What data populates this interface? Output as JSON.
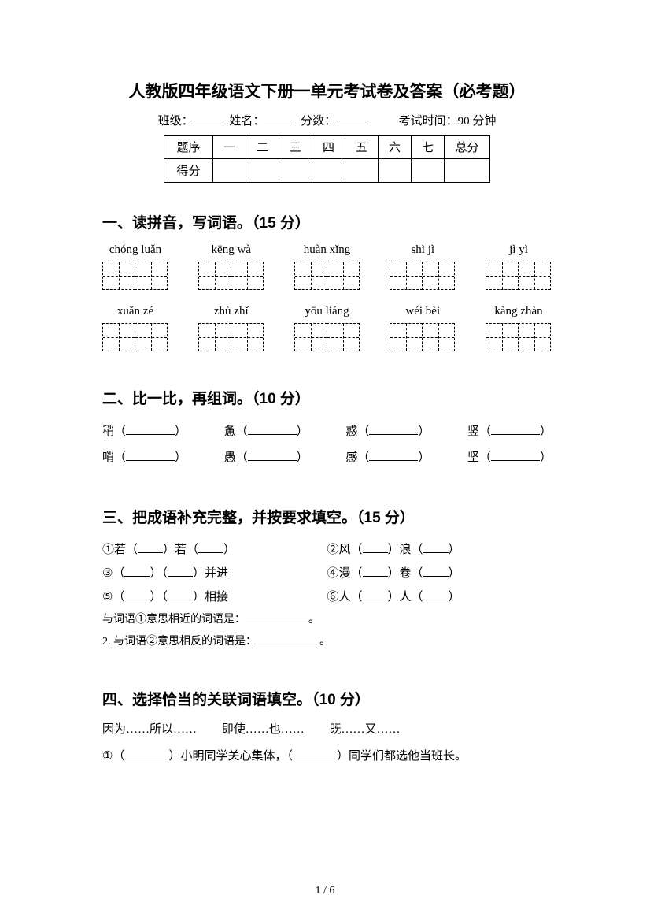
{
  "title": "人教版四年级语文下册一单元考试卷及答案（必考题）",
  "info": {
    "class_label": "班级：",
    "name_label": "姓名：",
    "score_label": "分数：",
    "time_label": "考试时间：90 分钟"
  },
  "score_table": {
    "header_label": "题序",
    "score_label": "得分",
    "columns": [
      "一",
      "二",
      "三",
      "四",
      "五",
      "六",
      "七"
    ],
    "total_label": "总分"
  },
  "section1": {
    "heading": "一、读拼音，写词语。（15 分）",
    "row1": [
      "chóng luǎn",
      "kēng wà",
      "huàn xǐng",
      "shì jì",
      "jì yì"
    ],
    "row2": [
      "xuǎn zé",
      "zhù zhǐ",
      "yōu liáng",
      "wéi bèi",
      "kàng zhàn"
    ]
  },
  "section2": {
    "heading": "二、比一比，再组词。（10 分）",
    "lines": [
      [
        "稍",
        "惫",
        "惑",
        "竖"
      ],
      [
        "哨",
        "愚",
        "感",
        "坚"
      ]
    ]
  },
  "section3": {
    "heading": "三、把成语补充完整，并按要求填空。（15 分）",
    "items": [
      {
        "left": "①若（",
        "mid": "）若（",
        "right": "）",
        "left2": "②风（",
        "mid2": "）浪（",
        "right2": "）"
      },
      {
        "left": "③（",
        "mid": "）（",
        "right": "）并进",
        "left2": "④漫（",
        "mid2": "）卷（",
        "right2": "）"
      },
      {
        "left": "⑤（",
        "mid": "）（",
        "right": "）相接",
        "left2": "⑥人（",
        "mid2": "）人（",
        "right2": "）"
      }
    ],
    "note1": "与词语①意思相近的词语是：",
    "note2": "2. 与词语②意思相反的词语是：",
    "period": "。"
  },
  "section4": {
    "heading": "四、选择恰当的关联词语填空。（10 分）",
    "options": [
      "因为……所以……",
      "即使……也……",
      "既……又……"
    ],
    "line1_a": "①（",
    "line1_b": "）小明同学关心集体，（",
    "line1_c": "）同学们都选他当班长。"
  },
  "page_number": "1 / 6",
  "colors": {
    "text": "#000000",
    "bg": "#ffffff"
  }
}
